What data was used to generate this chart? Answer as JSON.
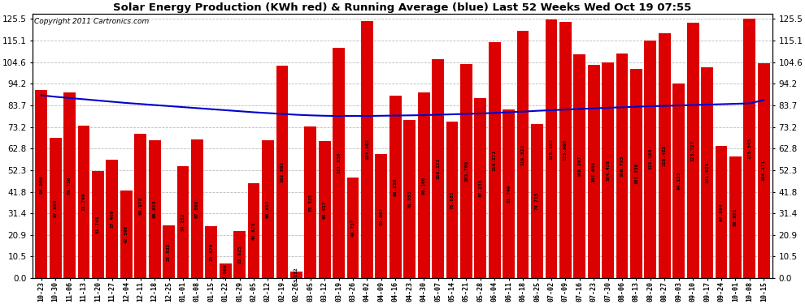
{
  "title": "Solar Energy Production (KWh red) & Running Average (blue) Last 52 Weeks Wed Oct 19 07:55",
  "copyright": "Copyright 2011 Cartronics.com",
  "bar_color": "#dd0000",
  "line_color": "#0000cc",
  "background_color": "#ffffff",
  "plot_bg_color": "#ffffff",
  "grid_color": "#bbbbbb",
  "yticks": [
    0.0,
    10.5,
    20.9,
    31.4,
    41.8,
    52.3,
    62.8,
    73.2,
    83.7,
    94.2,
    104.6,
    115.1,
    125.5
  ],
  "ylim": [
    0,
    128
  ],
  "categories": [
    "10-23",
    "10-30",
    "11-06",
    "11-13",
    "11-20",
    "11-27",
    "12-04",
    "12-11",
    "12-18",
    "12-25",
    "01-01",
    "01-08",
    "01-15",
    "01-22",
    "01-29",
    "02-05",
    "02-12",
    "02-19",
    "02-26",
    "03-05",
    "03-12",
    "03-19",
    "03-26",
    "04-02",
    "04-09",
    "04-16",
    "04-23",
    "04-30",
    "05-07",
    "05-14",
    "05-21",
    "05-28",
    "06-04",
    "06-11",
    "06-18",
    "06-25",
    "07-02",
    "07-09",
    "07-16",
    "07-23",
    "07-30",
    "08-06",
    "08-13",
    "08-20",
    "08-27",
    "09-03",
    "09-10",
    "09-17",
    "09-24",
    "10-01",
    "10-08",
    "10-15"
  ],
  "values": [
    90.9,
    67.985,
    89.73,
    73.749,
    51.741,
    57.469,
    42.598,
    69.978,
    66.933,
    25.532,
    54.152,
    67.09,
    25.078,
    7.009,
    22.925,
    45.875,
    66.897,
    102.692,
    3.152,
    73.525,
    66.417,
    111.33,
    48.737,
    124.582,
    60.007,
    88.216,
    76.583,
    90.1,
    106.151,
    75.885,
    103.709,
    87.233,
    114.271,
    81.749,
    119.822,
    74.715,
    125.102,
    123.906,
    108.297,
    103.059,
    104.429,
    108.783,
    101.336,
    115.18,
    118.452,
    94.133,
    123.727,
    101.925,
    64.094,
    58.981,
    125.545,
    104.171
  ],
  "running_avg": [
    88.5,
    87.8,
    87.2,
    86.6,
    86.0,
    85.4,
    84.8,
    84.3,
    83.8,
    83.3,
    82.8,
    82.3,
    81.8,
    81.3,
    80.8,
    80.3,
    79.9,
    79.5,
    79.1,
    78.8,
    78.6,
    78.5,
    78.5,
    78.5,
    78.6,
    78.7,
    78.8,
    78.9,
    79.1,
    79.3,
    79.5,
    79.7,
    80.0,
    80.3,
    80.6,
    81.0,
    81.3,
    81.6,
    81.9,
    82.2,
    82.5,
    82.7,
    83.0,
    83.2,
    83.4,
    83.6,
    83.8,
    84.0,
    84.2,
    84.4,
    84.6,
    86.2
  ]
}
